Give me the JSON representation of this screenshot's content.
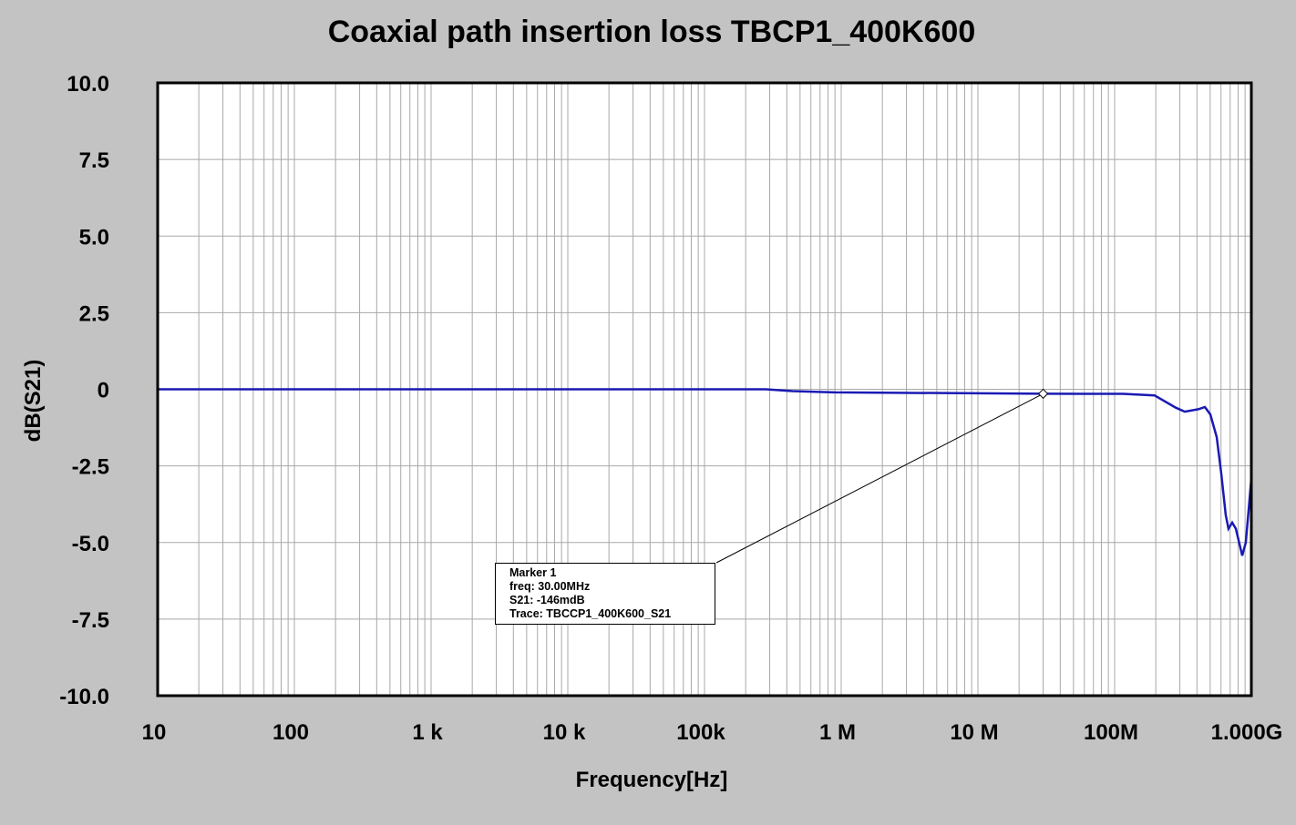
{
  "chart_data": {
    "type": "line",
    "title": "Coaxial path insertion loss TBCP1_400K600",
    "xlabel": "Frequency[Hz]",
    "ylabel": "dB(S21)",
    "x_scale": "log",
    "xlim": [
      10,
      1000000000
    ],
    "ylim": [
      -10,
      10
    ],
    "grid": true,
    "x_tick_values": [
      10,
      100,
      1000,
      10000,
      100000,
      1000000,
      10000000,
      100000000,
      1000000000
    ],
    "x_tick_labels": [
      "10",
      "100",
      "1  k",
      "10 k",
      "100k",
      "1  M",
      "10 M",
      "100M",
      "1.000G"
    ],
    "y_tick_values": [
      10,
      7.5,
      5,
      2.5,
      0,
      -2.5,
      -5,
      -7.5,
      -10
    ],
    "y_tick_labels": [
      "10.0",
      "7.5",
      "5.0",
      "2.5",
      "0",
      "-2.5",
      "-5.0",
      "-7.5",
      "-10.0"
    ],
    "series": [
      {
        "color": "#1a1ab4",
        "x": [
          10,
          100000,
          280000,
          440000,
          890000,
          30000000,
          60000000,
          115000000,
          196000000,
          280000000,
          326000000,
          410000000,
          457000000,
          501000000,
          558000000,
          603000000,
          650000000,
          680000000,
          724000000,
          770000000,
          858000000,
          910000000,
          955000000,
          1000000000
        ],
        "y": [
          0,
          0,
          0,
          -0.06,
          -0.1,
          -0.146,
          -0.15,
          -0.15,
          -0.2,
          -0.6,
          -0.73,
          -0.65,
          -0.58,
          -0.82,
          -1.56,
          -2.75,
          -4.1,
          -4.55,
          -4.35,
          -4.55,
          -5.43,
          -5.0,
          -3.95,
          -2.9
        ]
      }
    ],
    "annotation": {
      "marker_x": 30000000,
      "marker_y": -0.146,
      "lines": [
        "Marker 1",
        "freq: 30.00MHz",
        "S21: -146mdB",
        "Trace: TBCCP1_400K600_S21"
      ]
    }
  }
}
